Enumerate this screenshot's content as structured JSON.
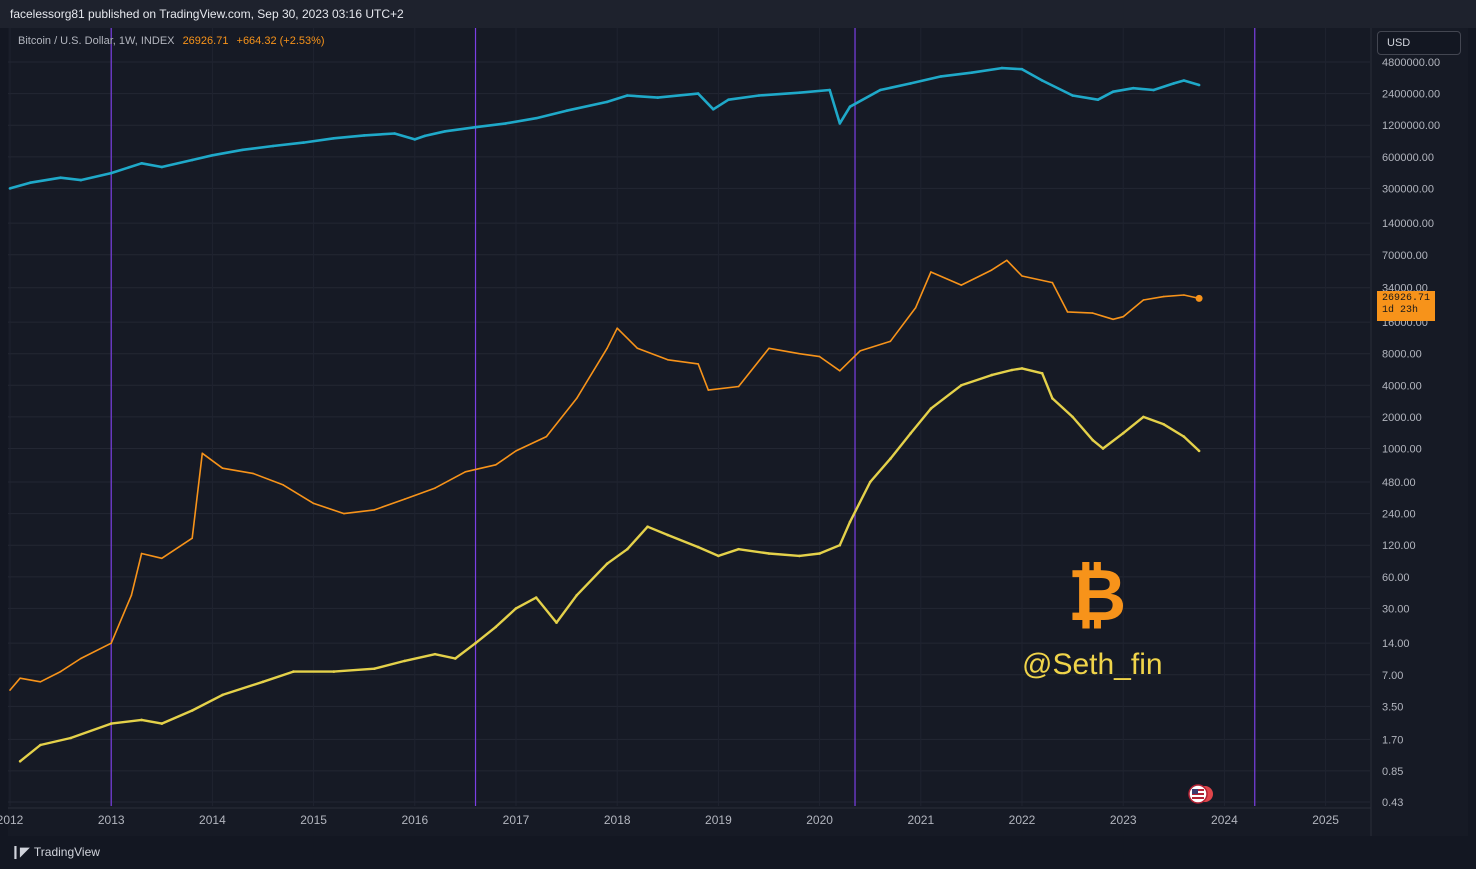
{
  "header": {
    "published": "facelessorg81 published on TradingView.com, Sep 30, 2023 03:16 UTC+2"
  },
  "legend": {
    "symbol": "Bitcoin / U.S. Dollar, 1W, INDEX",
    "last": "26926.71",
    "change": "+664.32 (+2.53%)"
  },
  "currency_button": "USD",
  "price_tag": {
    "value": "26926.71",
    "countdown": "1d 23h"
  },
  "watermark": "@Seth_fin",
  "footer": {
    "brand": "TradingView"
  },
  "icons": {
    "btc": "bitcoin-logo-icon",
    "flag": "us-flag-icon",
    "tv": "tradingview-logo-icon"
  },
  "colors": {
    "background": "#131722",
    "series_top": "#1fa9c9",
    "series_mid": "#f7931a",
    "series_bottom": "#e4d14a",
    "cycle_lines": "#7b3fe4"
  },
  "chart_data": {
    "type": "line",
    "scale": "log",
    "grid": true,
    "x_ticks": [
      "2012",
      "2013",
      "2014",
      "2015",
      "2016",
      "2017",
      "2018",
      "2019",
      "2020",
      "2021",
      "2022",
      "2023",
      "2024",
      "2025"
    ],
    "y_ticks": [
      "4800000.00",
      "2400000.00",
      "1200000.00",
      "600000.00",
      "300000.00",
      "140000.00",
      "70000.00",
      "34000.00",
      "16000.00",
      "8000.00",
      "4000.00",
      "2000.00",
      "1000.00",
      "480.00",
      "240.00",
      "120.00",
      "60.00",
      "30.00",
      "14.00",
      "7.00",
      "3.50",
      "1.70",
      "0.85",
      "0.43"
    ],
    "vertical_markers": [
      2013.0,
      2016.6,
      2020.35,
      2024.3
    ],
    "series": [
      {
        "points": [
          [
            2012.0,
            300000
          ],
          [
            2012.2,
            340000
          ],
          [
            2012.5,
            380000
          ],
          [
            2012.7,
            360000
          ],
          [
            2013.0,
            420000
          ],
          [
            2013.3,
            520000
          ],
          [
            2013.5,
            480000
          ],
          [
            2013.8,
            560000
          ],
          [
            2014.0,
            620000
          ],
          [
            2014.3,
            700000
          ],
          [
            2014.6,
            760000
          ],
          [
            2014.9,
            820000
          ],
          [
            2015.2,
            900000
          ],
          [
            2015.5,
            960000
          ],
          [
            2015.8,
            1000000
          ],
          [
            2016.0,
            880000
          ],
          [
            2016.1,
            950000
          ],
          [
            2016.3,
            1050000
          ],
          [
            2016.6,
            1150000
          ],
          [
            2016.9,
            1250000
          ],
          [
            2017.2,
            1400000
          ],
          [
            2017.5,
            1650000
          ],
          [
            2017.9,
            2000000
          ],
          [
            2018.1,
            2300000
          ],
          [
            2018.4,
            2200000
          ],
          [
            2018.8,
            2400000
          ],
          [
            2018.95,
            1700000
          ],
          [
            2019.1,
            2100000
          ],
          [
            2019.4,
            2300000
          ],
          [
            2019.8,
            2450000
          ],
          [
            2020.1,
            2600000
          ],
          [
            2020.2,
            1250000
          ],
          [
            2020.3,
            1800000
          ],
          [
            2020.6,
            2600000
          ],
          [
            2020.9,
            3000000
          ],
          [
            2021.2,
            3500000
          ],
          [
            2021.5,
            3800000
          ],
          [
            2021.8,
            4200000
          ],
          [
            2022.0,
            4100000
          ],
          [
            2022.2,
            3200000
          ],
          [
            2022.5,
            2300000
          ],
          [
            2022.75,
            2100000
          ],
          [
            2022.9,
            2500000
          ],
          [
            2023.1,
            2700000
          ],
          [
            2023.3,
            2600000
          ],
          [
            2023.5,
            3000000
          ],
          [
            2023.6,
            3200000
          ],
          [
            2023.75,
            2900000
          ]
        ]
      },
      {
        "points": [
          [
            2012.0,
            5
          ],
          [
            2012.1,
            6.5
          ],
          [
            2012.3,
            6
          ],
          [
            2012.5,
            7.5
          ],
          [
            2012.7,
            10
          ],
          [
            2013.0,
            14
          ],
          [
            2013.2,
            40
          ],
          [
            2013.3,
            100
          ],
          [
            2013.5,
            90
          ],
          [
            2013.8,
            140
          ],
          [
            2013.9,
            900
          ],
          [
            2014.1,
            650
          ],
          [
            2014.4,
            580
          ],
          [
            2014.7,
            450
          ],
          [
            2015.0,
            300
          ],
          [
            2015.3,
            240
          ],
          [
            2015.6,
            260
          ],
          [
            2015.9,
            330
          ],
          [
            2016.2,
            420
          ],
          [
            2016.5,
            600
          ],
          [
            2016.8,
            700
          ],
          [
            2017.0,
            950
          ],
          [
            2017.3,
            1300
          ],
          [
            2017.6,
            3000
          ],
          [
            2017.9,
            9000
          ],
          [
            2018.0,
            14000
          ],
          [
            2018.2,
            9000
          ],
          [
            2018.5,
            7000
          ],
          [
            2018.8,
            6400
          ],
          [
            2018.9,
            3600
          ],
          [
            2019.2,
            3900
          ],
          [
            2019.5,
            9000
          ],
          [
            2019.8,
            8000
          ],
          [
            2020.0,
            7500
          ],
          [
            2020.2,
            5500
          ],
          [
            2020.4,
            8500
          ],
          [
            2020.7,
            10500
          ],
          [
            2020.95,
            22000
          ],
          [
            2021.1,
            48000
          ],
          [
            2021.4,
            36000
          ],
          [
            2021.7,
            50000
          ],
          [
            2021.85,
            62000
          ],
          [
            2022.0,
            44000
          ],
          [
            2022.3,
            38000
          ],
          [
            2022.45,
            20000
          ],
          [
            2022.7,
            19500
          ],
          [
            2022.9,
            17000
          ],
          [
            2023.0,
            18000
          ],
          [
            2023.2,
            26000
          ],
          [
            2023.4,
            28000
          ],
          [
            2023.6,
            29000
          ],
          [
            2023.75,
            26926.71
          ]
        ]
      },
      {
        "points": [
          [
            2012.1,
            1.05
          ],
          [
            2012.3,
            1.5
          ],
          [
            2012.6,
            1.75
          ],
          [
            2013.0,
            2.4
          ],
          [
            2013.3,
            2.6
          ],
          [
            2013.5,
            2.4
          ],
          [
            2013.8,
            3.2
          ],
          [
            2014.1,
            4.5
          ],
          [
            2014.5,
            6
          ],
          [
            2014.8,
            7.5
          ],
          [
            2015.2,
            7.5
          ],
          [
            2015.6,
            8
          ],
          [
            2015.9,
            9.5
          ],
          [
            2016.2,
            11
          ],
          [
            2016.4,
            10
          ],
          [
            2016.6,
            14
          ],
          [
            2016.8,
            20
          ],
          [
            2017.0,
            30
          ],
          [
            2017.2,
            38
          ],
          [
            2017.4,
            22
          ],
          [
            2017.6,
            40
          ],
          [
            2017.9,
            80
          ],
          [
            2018.1,
            110
          ],
          [
            2018.3,
            180
          ],
          [
            2018.5,
            150
          ],
          [
            2018.8,
            115
          ],
          [
            2019.0,
            95
          ],
          [
            2019.2,
            110
          ],
          [
            2019.5,
            100
          ],
          [
            2019.8,
            95
          ],
          [
            2020.0,
            100
          ],
          [
            2020.2,
            120
          ],
          [
            2020.3,
            200
          ],
          [
            2020.5,
            480
          ],
          [
            2020.7,
            800
          ],
          [
            2020.9,
            1400
          ],
          [
            2021.1,
            2400
          ],
          [
            2021.4,
            4000
          ],
          [
            2021.7,
            5000
          ],
          [
            2021.9,
            5600
          ],
          [
            2022.0,
            5800
          ],
          [
            2022.2,
            5200
          ],
          [
            2022.3,
            3000
          ],
          [
            2022.5,
            2000
          ],
          [
            2022.7,
            1200
          ],
          [
            2022.8,
            1000
          ],
          [
            2023.0,
            1400
          ],
          [
            2023.2,
            2000
          ],
          [
            2023.4,
            1700
          ],
          [
            2023.6,
            1300
          ],
          [
            2023.75,
            950
          ]
        ]
      }
    ]
  }
}
